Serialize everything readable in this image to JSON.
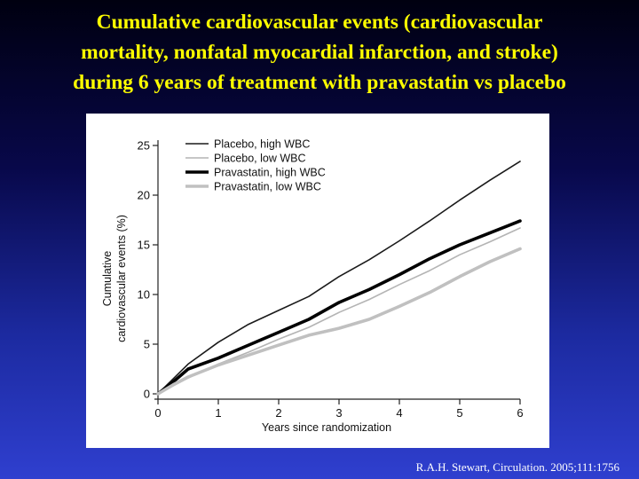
{
  "slide": {
    "title_lines": [
      "Cumulative cardiovascular events (cardiovascular",
      "mortality, nonfatal myocardial infarction, and stroke)",
      "during 6 years of treatment with pravastatin vs placebo"
    ],
    "citation": "R.A.H. Stewart, Circulation. 2005;111:1756"
  },
  "colors": {
    "title": "#ffff00",
    "citation": "#ffffff",
    "panel": "#ffffff"
  },
  "chart_data": {
    "type": "line",
    "title": "",
    "xlabel": "Years since randomization",
    "ylabel_lines": [
      "Cumulative",
      "cardiovascular events (%)"
    ],
    "xlim": [
      0,
      6
    ],
    "ylim": [
      0,
      25
    ],
    "xticks": [
      0,
      1,
      2,
      3,
      4,
      5,
      6
    ],
    "yticks": [
      0,
      5,
      10,
      15,
      20,
      25
    ],
    "grid": false,
    "legend_position": "top-left",
    "series": [
      {
        "name": "Placebo, high WBC",
        "color": "#1a1a1a",
        "width": 1.6,
        "x": [
          0,
          0.25,
          0.5,
          1,
          1.5,
          2,
          2.5,
          3,
          3.5,
          4,
          4.5,
          5,
          5.5,
          6
        ],
        "y": [
          0,
          1.5,
          3.0,
          5.2,
          7.0,
          8.4,
          9.8,
          11.8,
          13.5,
          15.4,
          17.4,
          19.5,
          21.5,
          23.4
        ]
      },
      {
        "name": "Placebo, low WBC",
        "color": "#b4b4b4",
        "width": 1.6,
        "x": [
          0,
          0.25,
          0.5,
          1,
          1.5,
          2,
          2.5,
          3,
          3.5,
          4,
          4.5,
          5,
          5.5,
          6
        ],
        "y": [
          0,
          0.8,
          1.6,
          3.0,
          4.2,
          5.5,
          6.7,
          8.2,
          9.5,
          11.0,
          12.4,
          14.0,
          15.3,
          16.7
        ]
      },
      {
        "name": "Pravastatin, high WBC",
        "color": "#000000",
        "width": 3.6,
        "x": [
          0,
          0.25,
          0.5,
          1,
          1.5,
          2,
          2.5,
          3,
          3.5,
          4,
          4.5,
          5,
          5.5,
          6
        ],
        "y": [
          0,
          1.2,
          2.5,
          3.6,
          4.9,
          6.2,
          7.5,
          9.2,
          10.5,
          12.0,
          13.6,
          15.0,
          16.2,
          17.4
        ]
      },
      {
        "name": "Pravastatin, low WBC",
        "color": "#c0c0c0",
        "width": 3.6,
        "x": [
          0,
          0.25,
          0.5,
          1,
          1.5,
          2,
          2.5,
          3,
          3.5,
          4,
          4.5,
          5,
          5.5,
          6
        ],
        "y": [
          0,
          0.9,
          1.7,
          2.9,
          3.9,
          4.9,
          5.9,
          6.6,
          7.5,
          8.8,
          10.2,
          11.8,
          13.3,
          14.6
        ]
      }
    ]
  }
}
